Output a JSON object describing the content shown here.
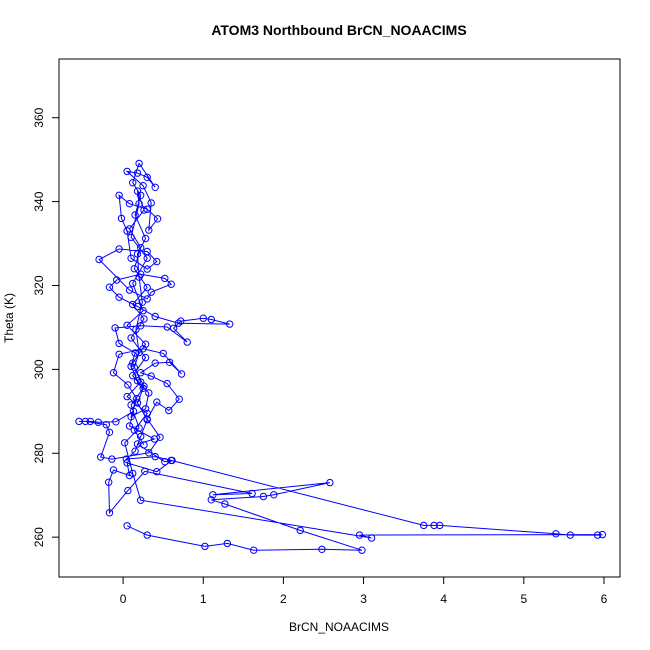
{
  "chart_data": {
    "type": "scatter",
    "title": "ATOM3 Northbound BrCN_NOAACIMS",
    "xlabel": "BrCN_NOAACIMS",
    "ylabel": "Theta (K)",
    "xlim": [
      -0.8,
      6.2
    ],
    "ylim": [
      250.5,
      374
    ],
    "xticks": [
      "0",
      "1",
      "2",
      "3",
      "4",
      "5",
      "6"
    ],
    "yticks": [
      "260",
      "280",
      "300",
      "320",
      "340",
      "360"
    ],
    "xtick_values": [
      0,
      1,
      2,
      3,
      4,
      5,
      6
    ],
    "ytick_values": [
      260,
      280,
      300,
      320,
      340,
      360
    ],
    "marker_style": "open-circle-with-connecting-lines",
    "color": "#0000ff",
    "series": [
      {
        "values_xy": [
          [
            0.05,
            262.7
          ],
          [
            0.3,
            260.5
          ],
          [
            1.02,
            257.8
          ],
          [
            1.3,
            258.5
          ],
          [
            1.63,
            256.9
          ],
          [
            2.48,
            257.1
          ],
          [
            2.98,
            256.9
          ],
          [
            2.21,
            261.6
          ],
          [
            1.27,
            267.9
          ],
          [
            1.1,
            268.9
          ],
          [
            1.75,
            269.7
          ],
          [
            1.88,
            270.1
          ],
          [
            2.58,
            273.0
          ],
          [
            1.12,
            270.1
          ],
          [
            1.61,
            270.4
          ],
          [
            0.27,
            275.7
          ],
          [
            0.06,
            271.1
          ],
          [
            -0.17,
            265.8
          ],
          [
            -0.18,
            273.1
          ],
          [
            -0.12,
            276.0
          ],
          [
            0.08,
            274.7
          ],
          [
            0.05,
            277.7
          ],
          [
            0.42,
            275.6
          ],
          [
            0.61,
            278.3
          ],
          [
            0.52,
            278.0
          ],
          [
            0.18,
            282.2
          ],
          [
            0.39,
            283.4
          ],
          [
            0.08,
            286.5
          ],
          [
            0.13,
            290.0
          ],
          [
            -0.09,
            287.5
          ],
          [
            -0.31,
            287.4
          ],
          [
            -0.41,
            287.6
          ],
          [
            -0.55,
            287.6
          ],
          [
            -0.47,
            287.6
          ],
          [
            -0.21,
            286.8
          ],
          [
            -0.17,
            285.0
          ],
          [
            -0.28,
            279.1
          ],
          [
            -0.14,
            278.6
          ],
          [
            0.32,
            280.1
          ],
          [
            0.46,
            283.8
          ],
          [
            0.3,
            288.2
          ],
          [
            0.42,
            292.2
          ],
          [
            0.57,
            290.2
          ],
          [
            0.7,
            292.9
          ],
          [
            0.55,
            296.6
          ],
          [
            0.35,
            298.4
          ],
          [
            0.22,
            299.2
          ],
          [
            0.4,
            301.5
          ],
          [
            0.58,
            301.7
          ],
          [
            0.73,
            298.9
          ],
          [
            0.5,
            303.8
          ],
          [
            0.25,
            304.9
          ],
          [
            -0.05,
            303.6
          ],
          [
            -0.12,
            299.2
          ],
          [
            0.06,
            296.3
          ],
          [
            0.17,
            293.0
          ],
          [
            0.1,
            288.7
          ],
          [
            0.28,
            290.6
          ],
          [
            0.32,
            294.4
          ],
          [
            0.18,
            297.3
          ],
          [
            0.1,
            300.7
          ],
          [
            0.15,
            303.9
          ],
          [
            -0.05,
            306.2
          ],
          [
            -0.1,
            309.9
          ],
          [
            0.22,
            310.4
          ],
          [
            0.55,
            310.1
          ],
          [
            0.8,
            306.5
          ],
          [
            0.63,
            309.8
          ],
          [
            0.72,
            311.5
          ],
          [
            1.0,
            312.2
          ],
          [
            1.1,
            311.9
          ],
          [
            1.33,
            310.8
          ],
          [
            0.69,
            311.0
          ],
          [
            0.4,
            312.6
          ],
          [
            0.18,
            315.0
          ],
          [
            -0.05,
            317.2
          ],
          [
            -0.17,
            319.6
          ],
          [
            -0.08,
            321.3
          ],
          [
            0.22,
            322.7
          ],
          [
            0.52,
            321.7
          ],
          [
            0.6,
            320.3
          ],
          [
            0.35,
            318.4
          ],
          [
            0.3,
            316.8
          ],
          [
            0.08,
            318.9
          ],
          [
            -0.3,
            326.2
          ],
          [
            -0.05,
            328.7
          ],
          [
            0.3,
            328.1
          ],
          [
            0.42,
            325.7
          ],
          [
            0.3,
            323.9
          ],
          [
            0.1,
            326.5
          ],
          [
            0.05,
            333.0
          ],
          [
            -0.02,
            336.0
          ],
          [
            -0.05,
            341.5
          ],
          [
            0.08,
            339.5
          ],
          [
            0.3,
            338.2
          ],
          [
            0.43,
            335.9
          ],
          [
            0.32,
            333.2
          ],
          [
            0.35,
            339.7
          ],
          [
            0.25,
            343.8
          ],
          [
            0.05,
            347.2
          ],
          [
            0.18,
            346.8
          ],
          [
            0.3,
            345.8
          ],
          [
            0.4,
            343.4
          ],
          [
            0.2,
            349.1
          ],
          [
            0.12,
            344.5
          ],
          [
            0.22,
            341.5
          ],
          [
            0.15,
            336.8
          ],
          [
            0.28,
            331.2
          ],
          [
            0.18,
            327.5
          ],
          [
            0.2,
            322.0
          ],
          [
            0.24,
            316.0
          ],
          [
            0.16,
            309.5
          ],
          [
            0.2,
            304.0
          ],
          [
            0.14,
            300.5
          ],
          [
            0.26,
            296.0
          ],
          [
            0.18,
            292.0
          ],
          [
            0.3,
            288.0
          ],
          [
            0.22,
            284.0
          ],
          [
            0.15,
            280.5
          ],
          [
            0.04,
            278.6
          ],
          [
            0.4,
            279.2
          ],
          [
            0.6,
            278.3
          ],
          [
            3.75,
            262.8
          ],
          [
            3.88,
            262.8
          ],
          [
            3.95,
            262.8
          ],
          [
            5.4,
            260.8
          ],
          [
            5.58,
            260.5
          ],
          [
            5.92,
            260.5
          ],
          [
            5.98,
            260.6
          ],
          [
            2.95,
            260.5
          ],
          [
            3.1,
            259.8
          ],
          [
            0.22,
            268.8
          ],
          [
            0.12,
            275.2
          ],
          [
            0.02,
            282.5
          ],
          [
            0.2,
            286.0
          ],
          [
            0.1,
            291.5
          ],
          [
            0.25,
            295.5
          ],
          [
            0.12,
            298.5
          ],
          [
            0.28,
            302.8
          ],
          [
            0.1,
            307.5
          ],
          [
            0.26,
            312.0
          ],
          [
            0.12,
            315.5
          ],
          [
            0.3,
            319.5
          ],
          [
            0.14,
            324.0
          ],
          [
            0.22,
            329.0
          ],
          [
            0.08,
            333.5
          ],
          [
            0.26,
            338.0
          ],
          [
            0.18,
            342.5
          ],
          [
            0.2,
            339.5
          ],
          [
            0.1,
            331.5
          ],
          [
            0.3,
            326.5
          ],
          [
            0.12,
            320.5
          ],
          [
            0.25,
            314.0
          ],
          [
            0.05,
            310.5
          ],
          [
            0.28,
            306.0
          ],
          [
            0.12,
            301.5
          ],
          [
            0.22,
            297.0
          ],
          [
            0.05,
            293.5
          ],
          [
            0.3,
            289.5
          ],
          [
            0.14,
            285.5
          ],
          [
            0.26,
            282.0
          ]
        ]
      }
    ]
  }
}
